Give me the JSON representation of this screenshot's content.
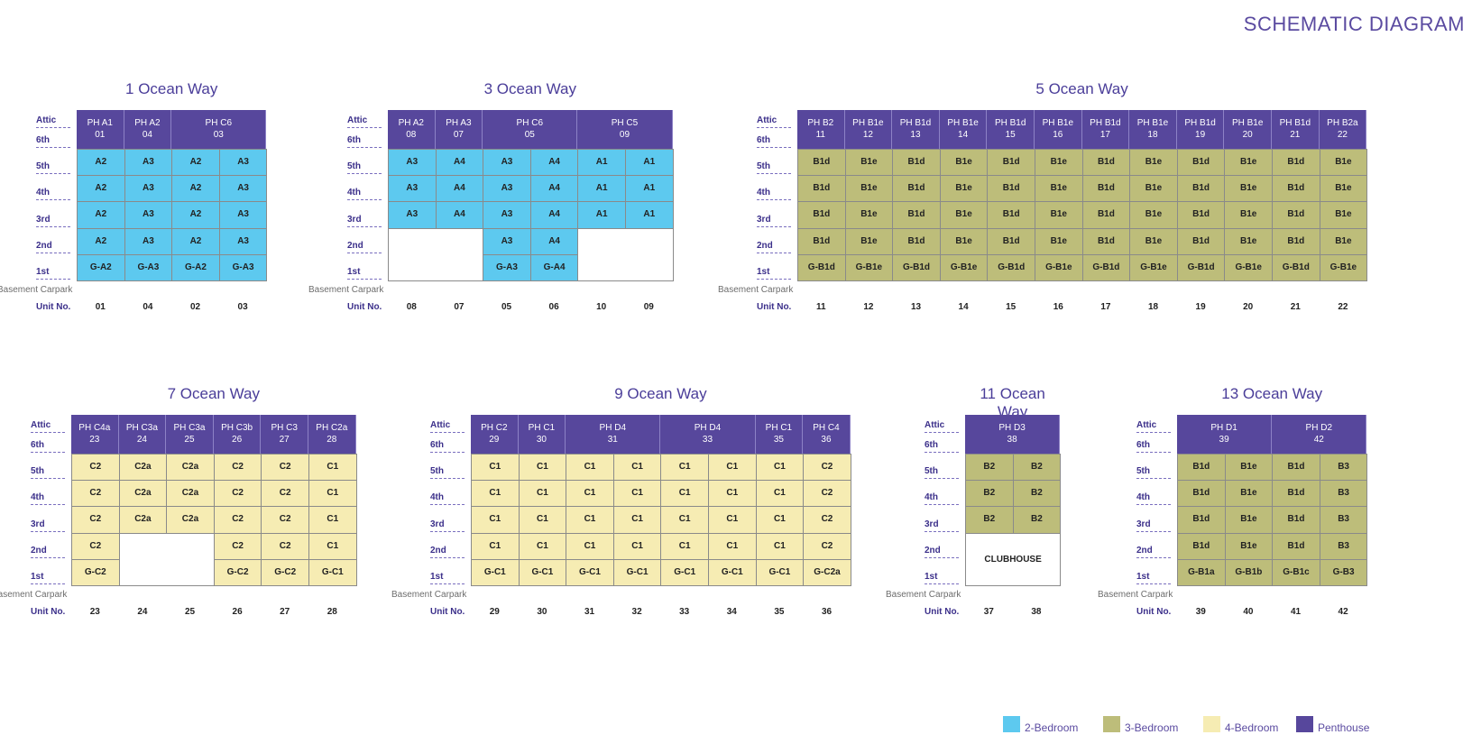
{
  "title": "SCHEMATIC DIAGRAM",
  "floor_labels": [
    "Attic",
    "6th",
    "5th",
    "4th",
    "3rd",
    "2nd",
    "1st"
  ],
  "basement_label": "Basement Carpark",
  "unit_label": "Unit No.",
  "clubhouse_label": "CLUBHOUSE",
  "colors": {
    "2-Bedroom": "#5dc9ef",
    "3-Bedroom": "#bdbd7a",
    "4-Bedroom": "#f6ecb3",
    "Penthouse": "#57479c"
  },
  "legend": [
    {
      "name": "2-Bedroom",
      "color": "#5dc9ef"
    },
    {
      "name": "3-Bedroom",
      "color": "#bdbd7a"
    },
    {
      "name": "4-Bedroom",
      "color": "#f6ecb3"
    },
    {
      "name": "Penthouse",
      "color": "#57479c"
    }
  ],
  "blocks": [
    {
      "name": "1 Ocean Way",
      "penthouses": [
        {
          "label": "PH A1",
          "unit": "01",
          "span": 1
        },
        {
          "label": "PH A2",
          "unit": "04",
          "span": 1
        },
        {
          "label": "PH C6",
          "unit": "03",
          "span": 2
        }
      ],
      "rows": [
        [
          "A2",
          "A3",
          "A2",
          "A3"
        ],
        [
          "A2",
          "A3",
          "A2",
          "A3"
        ],
        [
          "A2",
          "A3",
          "A2",
          "A3"
        ],
        [
          "A2",
          "A3",
          "A2",
          "A3"
        ],
        [
          "G-A2",
          "G-A3",
          "G-A2",
          "G-A3"
        ]
      ],
      "types": [
        [
          "2",
          "2",
          "2",
          "2"
        ],
        [
          "2",
          "2",
          "2",
          "2"
        ],
        [
          "2",
          "2",
          "2",
          "2"
        ],
        [
          "2",
          "2",
          "2",
          "2"
        ],
        [
          "2",
          "2",
          "2",
          "2"
        ]
      ],
      "units": [
        "01",
        "04",
        "02",
        "03"
      ]
    },
    {
      "name": "3 Ocean Way",
      "penthouses": [
        {
          "label": "PH A2",
          "unit": "08",
          "span": 1
        },
        {
          "label": "PH A3",
          "unit": "07",
          "span": 1
        },
        {
          "label": "PH C6",
          "unit": "05",
          "span": 2
        },
        {
          "label": "PH C5",
          "unit": "09",
          "span": 2
        }
      ],
      "rows": [
        [
          "A3",
          "A4",
          "A3",
          "A4",
          "A1",
          "A1"
        ],
        [
          "A3",
          "A4",
          "A3",
          "A4",
          "A1",
          "A1"
        ],
        [
          "A3",
          "A4",
          "A3",
          "A4",
          "A1",
          "A1"
        ],
        [
          "",
          "",
          "A3",
          "A4",
          "",
          ""
        ],
        [
          "",
          "",
          "G-A3",
          "G-A4",
          "",
          ""
        ]
      ],
      "types": [
        [
          "2",
          "2",
          "2",
          "2",
          "2",
          "2"
        ],
        [
          "2",
          "2",
          "2",
          "2",
          "2",
          "2"
        ],
        [
          "2",
          "2",
          "2",
          "2",
          "2",
          "2"
        ],
        [
          "",
          "",
          "2",
          "2",
          "",
          ""
        ],
        [
          "",
          "",
          "2",
          "2",
          "",
          ""
        ]
      ],
      "units": [
        "08",
        "07",
        "05",
        "06",
        "10",
        "09"
      ]
    },
    {
      "name": "5 Ocean Way",
      "penthouses": [
        {
          "label": "PH B2",
          "unit": "11",
          "span": 1
        },
        {
          "label": "PH B1e",
          "unit": "12",
          "span": 1
        },
        {
          "label": "PH B1d",
          "unit": "13",
          "span": 1
        },
        {
          "label": "PH B1e",
          "unit": "14",
          "span": 1
        },
        {
          "label": "PH B1d",
          "unit": "15",
          "span": 1
        },
        {
          "label": "PH B1e",
          "unit": "16",
          "span": 1
        },
        {
          "label": "PH B1d",
          "unit": "17",
          "span": 1
        },
        {
          "label": "PH B1e",
          "unit": "18",
          "span": 1
        },
        {
          "label": "PH B1d",
          "unit": "19",
          "span": 1
        },
        {
          "label": "PH B1e",
          "unit": "20",
          "span": 1
        },
        {
          "label": "PH B1d",
          "unit": "21",
          "span": 1
        },
        {
          "label": "PH B2a",
          "unit": "22",
          "span": 1
        }
      ],
      "rows": [
        [
          "B1d",
          "B1e",
          "B1d",
          "B1e",
          "B1d",
          "B1e",
          "B1d",
          "B1e",
          "B1d",
          "B1e",
          "B1d",
          "B1e"
        ],
        [
          "B1d",
          "B1e",
          "B1d",
          "B1e",
          "B1d",
          "B1e",
          "B1d",
          "B1e",
          "B1d",
          "B1e",
          "B1d",
          "B1e"
        ],
        [
          "B1d",
          "B1e",
          "B1d",
          "B1e",
          "B1d",
          "B1e",
          "B1d",
          "B1e",
          "B1d",
          "B1e",
          "B1d",
          "B1e"
        ],
        [
          "B1d",
          "B1e",
          "B1d",
          "B1e",
          "B1d",
          "B1e",
          "B1d",
          "B1e",
          "B1d",
          "B1e",
          "B1d",
          "B1e"
        ],
        [
          "G-B1d",
          "G-B1e",
          "G-B1d",
          "G-B1e",
          "G-B1d",
          "G-B1e",
          "G-B1d",
          "G-B1e",
          "G-B1d",
          "G-B1e",
          "G-B1d",
          "G-B1e"
        ]
      ],
      "types": [
        [
          "3",
          "3",
          "3",
          "3",
          "3",
          "3",
          "3",
          "3",
          "3",
          "3",
          "3",
          "3"
        ],
        [
          "3",
          "3",
          "3",
          "3",
          "3",
          "3",
          "3",
          "3",
          "3",
          "3",
          "3",
          "3"
        ],
        [
          "3",
          "3",
          "3",
          "3",
          "3",
          "3",
          "3",
          "3",
          "3",
          "3",
          "3",
          "3"
        ],
        [
          "3",
          "3",
          "3",
          "3",
          "3",
          "3",
          "3",
          "3",
          "3",
          "3",
          "3",
          "3"
        ],
        [
          "3",
          "3",
          "3",
          "3",
          "3",
          "3",
          "3",
          "3",
          "3",
          "3",
          "3",
          "3"
        ]
      ],
      "units": [
        "11",
        "12",
        "13",
        "14",
        "15",
        "16",
        "17",
        "18",
        "19",
        "20",
        "21",
        "22"
      ]
    },
    {
      "name": "7 Ocean Way",
      "penthouses": [
        {
          "label": "PH C4a",
          "unit": "23",
          "span": 1
        },
        {
          "label": "PH C3a",
          "unit": "24",
          "span": 1
        },
        {
          "label": "PH C3a",
          "unit": "25",
          "span": 1
        },
        {
          "label": "PH C3b",
          "unit": "26",
          "span": 1
        },
        {
          "label": "PH C3",
          "unit": "27",
          "span": 1
        },
        {
          "label": "PH C2a",
          "unit": "28",
          "span": 1
        }
      ],
      "rows": [
        [
          "C2",
          "C2a",
          "C2a",
          "C2",
          "C2",
          "C1"
        ],
        [
          "C2",
          "C2a",
          "C2a",
          "C2",
          "C2",
          "C1"
        ],
        [
          "C2",
          "C2a",
          "C2a",
          "C2",
          "C2",
          "C1"
        ],
        [
          "C2",
          "",
          "",
          "C2",
          "C2",
          "C1"
        ],
        [
          "G-C2",
          "",
          "",
          "G-C2",
          "G-C2",
          "G-C1"
        ]
      ],
      "types": [
        [
          "4",
          "4",
          "4",
          "4",
          "4",
          "4"
        ],
        [
          "4",
          "4",
          "4",
          "4",
          "4",
          "4"
        ],
        [
          "4",
          "4",
          "4",
          "4",
          "4",
          "4"
        ],
        [
          "4",
          "",
          "",
          "4",
          "4",
          "4"
        ],
        [
          "4",
          "",
          "",
          "4",
          "4",
          "4"
        ]
      ],
      "units": [
        "23",
        "24",
        "25",
        "26",
        "27",
        "28"
      ]
    },
    {
      "name": "9 Ocean Way",
      "penthouses": [
        {
          "label": "PH C2",
          "unit": "29",
          "span": 1
        },
        {
          "label": "PH C1",
          "unit": "30",
          "span": 1
        },
        {
          "label": "PH D4",
          "unit": "31",
          "span": 2
        },
        {
          "label": "PH D4",
          "unit": "33",
          "span": 2
        },
        {
          "label": "PH C1",
          "unit": "35",
          "span": 1
        },
        {
          "label": "PH C4",
          "unit": "36",
          "span": 1
        }
      ],
      "rows": [
        [
          "C1",
          "C1",
          "C1",
          "C1",
          "C1",
          "C1",
          "C1",
          "C2"
        ],
        [
          "C1",
          "C1",
          "C1",
          "C1",
          "C1",
          "C1",
          "C1",
          "C2"
        ],
        [
          "C1",
          "C1",
          "C1",
          "C1",
          "C1",
          "C1",
          "C1",
          "C2"
        ],
        [
          "C1",
          "C1",
          "C1",
          "C1",
          "C1",
          "C1",
          "C1",
          "C2"
        ],
        [
          "G-C1",
          "G-C1",
          "G-C1",
          "G-C1",
          "G-C1",
          "G-C1",
          "G-C1",
          "G-C2a"
        ]
      ],
      "types": [
        [
          "4",
          "4",
          "4",
          "4",
          "4",
          "4",
          "4",
          "4"
        ],
        [
          "4",
          "4",
          "4",
          "4",
          "4",
          "4",
          "4",
          "4"
        ],
        [
          "4",
          "4",
          "4",
          "4",
          "4",
          "4",
          "4",
          "4"
        ],
        [
          "4",
          "4",
          "4",
          "4",
          "4",
          "4",
          "4",
          "4"
        ],
        [
          "4",
          "4",
          "4",
          "4",
          "4",
          "4",
          "4",
          "4"
        ]
      ],
      "units": [
        "29",
        "30",
        "31",
        "32",
        "33",
        "34",
        "35",
        "36"
      ]
    },
    {
      "name": "11 Ocean Way",
      "penthouses": [
        {
          "label": "PH D3",
          "unit": "38",
          "span": 2
        }
      ],
      "rows": [
        [
          "B2",
          "B2"
        ],
        [
          "B2",
          "B2"
        ],
        [
          "B2",
          "B2"
        ],
        [
          "",
          ""
        ],
        [
          "",
          ""
        ]
      ],
      "types": [
        [
          "3",
          "3"
        ],
        [
          "3",
          "3"
        ],
        [
          "3",
          "3"
        ],
        [
          "",
          ""
        ],
        [
          "",
          ""
        ]
      ],
      "units": [
        "37",
        "38"
      ]
    },
    {
      "name": "13 Ocean Way",
      "penthouses": [
        {
          "label": "PH D1",
          "unit": "39",
          "span": 2
        },
        {
          "label": "PH D2",
          "unit": "42",
          "span": 2
        }
      ],
      "rows": [
        [
          "B1d",
          "B1e",
          "B1d",
          "B3"
        ],
        [
          "B1d",
          "B1e",
          "B1d",
          "B3"
        ],
        [
          "B1d",
          "B1e",
          "B1d",
          "B3"
        ],
        [
          "B1d",
          "B1e",
          "B1d",
          "B3"
        ],
        [
          "G-B1a",
          "G-B1b",
          "G-B1c",
          "G-B3"
        ]
      ],
      "types": [
        [
          "3",
          "3",
          "3",
          "3"
        ],
        [
          "3",
          "3",
          "3",
          "3"
        ],
        [
          "3",
          "3",
          "3",
          "3"
        ],
        [
          "3",
          "3",
          "3",
          "3"
        ],
        [
          "3",
          "3",
          "3",
          "3"
        ]
      ],
      "units": [
        "39",
        "40",
        "41",
        "42"
      ]
    }
  ]
}
